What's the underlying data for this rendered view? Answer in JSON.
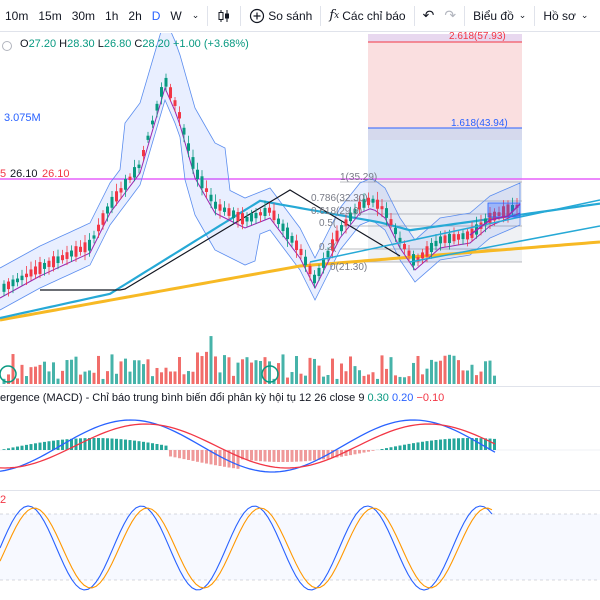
{
  "toolbar": {
    "timeframes": [
      "10m",
      "15m",
      "30m",
      "1h",
      "2h",
      "D",
      "W"
    ],
    "active_timeframe": "D",
    "compare_label": "So sánh",
    "indicators_label": "Các chỉ báo",
    "chart_label": "Biểu đồ",
    "profile_label": "Hồ sơ"
  },
  "ohlc": {
    "open_key": "O",
    "open": "27.20",
    "high_key": "H",
    "high": "28.30",
    "low_key": "L",
    "low": "26.80",
    "close_key": "C",
    "close": "28.20",
    "change": "+1.00 (+3.68%)"
  },
  "volume_value": "3.075M",
  "price_labels": {
    "left_a": "5",
    "left_b": "26.10",
    "left_c": "26.10"
  },
  "fib_levels": {
    "l2618": "2.618(57.93)",
    "l1618": "1.618(43.94)",
    "l1": "1(35.29)",
    "l786": "0.786(32.30)",
    "l618": "0.618(29.9)",
    "l5": "0.5(",
    "l236": "0.2(",
    "l0": "0(21.30)"
  },
  "macd_legend": {
    "name": "ergence (MACD) - Chỉ báo trung bình biến đổi phân kỳ hội tụ 12 26 close 9",
    "v1": "0.30",
    "v2": "0.20",
    "v3": "−0.10"
  },
  "stoch_label": "2",
  "colors": {
    "up": "#089981",
    "down": "#f23645",
    "accent": "#2962ff",
    "ma_yellow": "#f7b924",
    "ma_teal": "#26a9d6",
    "fib_red_zone": "#f6c9cc",
    "fib_blue_zone": "#bcd6f5"
  },
  "icons": {
    "candle_type": "candlestick-icon",
    "compare": "plus-circle-icon",
    "indicators": "fx-icon",
    "undo": "undo-icon",
    "redo": "redo-icon",
    "chart_menu": "chevron-down-icon"
  }
}
